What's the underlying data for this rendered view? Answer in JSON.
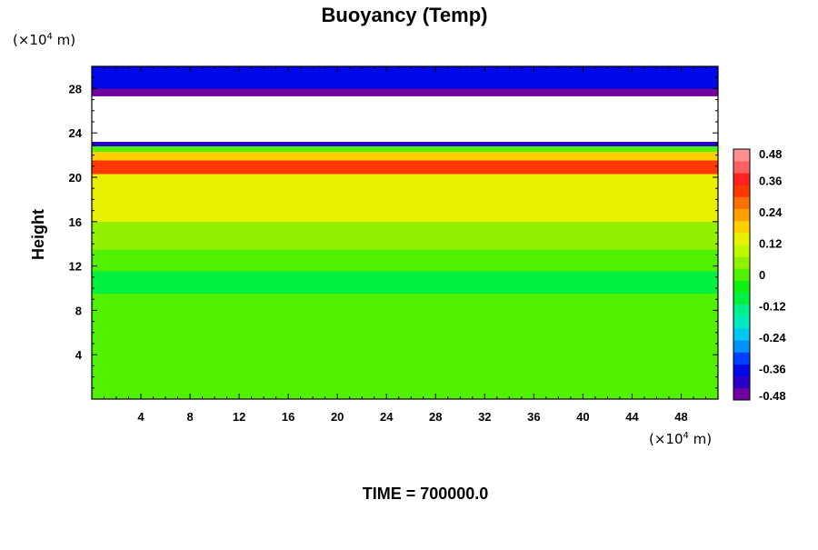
{
  "chart_data": {
    "type": "heatmap",
    "title": "Buoyancy (Temp)",
    "ylabel": "Height",
    "xlabel": "",
    "x_unit_prefix": "(×10",
    "x_unit_exp": "4",
    "x_unit_suffix": " m)",
    "y_unit_prefix": "(×10",
    "y_unit_exp": "4",
    "y_unit_suffix": " m)",
    "xlim": [
      0,
      51
    ],
    "ylim": [
      0,
      30
    ],
    "x_ticks": [
      "4",
      "8",
      "12",
      "16",
      "20",
      "24",
      "28",
      "32",
      "36",
      "40",
      "44",
      "48"
    ],
    "x_tick_values": [
      4,
      8,
      12,
      16,
      20,
      24,
      28,
      32,
      36,
      40,
      44,
      48
    ],
    "y_ticks": [
      "4",
      "8",
      "12",
      "16",
      "20",
      "24",
      "28"
    ],
    "y_tick_values": [
      4,
      8,
      12,
      16,
      20,
      24,
      28
    ],
    "colorbar": {
      "range": [
        -0.48,
        0.48
      ],
      "tick_labels": [
        "0.48",
        "0.36",
        "0.24",
        "0.12",
        "0",
        "-0.12",
        "-0.24",
        "-0.36",
        "-0.48"
      ],
      "tick_values": [
        0.48,
        0.36,
        0.24,
        0.12,
        0,
        -0.12,
        -0.24,
        -0.36,
        -0.48
      ],
      "colors": [
        "#7000a0",
        "#2800c8",
        "#0008e8",
        "#0040ff",
        "#0090ff",
        "#00c8f0",
        "#00e8c0",
        "#00f090",
        "#00f040",
        "#10f010",
        "#50f000",
        "#90f000",
        "#c0f800",
        "#e8f000",
        "#ffd000",
        "#ffa000",
        "#ff7000",
        "#ff3800",
        "#ff2020",
        "#ff6060",
        "#ff9090"
      ]
    },
    "vertical_profile": [
      {
        "y0": 0,
        "y1": 8,
        "value": 0.0
      },
      {
        "y0": 8,
        "y1": 9.5,
        "value": -0.02
      },
      {
        "y0": 9.5,
        "y1": 11.5,
        "value": -0.08
      },
      {
        "y0": 11.5,
        "y1": 13.5,
        "value": -0.02
      },
      {
        "y0": 13.5,
        "y1": 16,
        "value": 0.04
      },
      {
        "y0": 16,
        "y1": 19.5,
        "value": 0.12
      },
      {
        "y0": 19.5,
        "y1": 20.3,
        "value": 0.14
      },
      {
        "y0": 20.3,
        "y1": 21.5,
        "value": 0.34
      },
      {
        "y0": 21.5,
        "y1": 22.3,
        "value": 0.18
      },
      {
        "y0": 22.3,
        "y1": 22.8,
        "value": 0.02
      },
      {
        "y0": 22.8,
        "y1": 23.2,
        "value": -0.4
      },
      {
        "y0": 27.3,
        "y1": 28,
        "value": -0.44
      },
      {
        "y0": 28,
        "y1": 30,
        "value": -0.38
      }
    ],
    "no_data_layer": [
      23.2,
      27.3
    ]
  },
  "footer": {
    "time_label": "TIME = 700000.0"
  }
}
